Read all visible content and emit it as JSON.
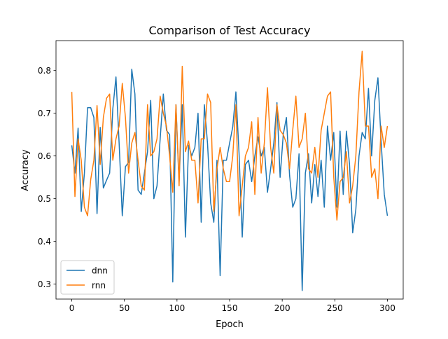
{
  "chart_data": {
    "type": "line",
    "title": "Comparison of Test Accuracy",
    "xlabel": "Epoch",
    "ylabel": "Accuracy",
    "xlim": [
      -15,
      315
    ],
    "ylim": [
      0.265,
      0.87
    ],
    "xticks": [
      0,
      50,
      100,
      150,
      200,
      250,
      300
    ],
    "yticks": [
      0.3,
      0.4,
      0.5,
      0.6,
      0.7,
      0.8
    ],
    "grid": false,
    "legend": "lower-left",
    "x": [
      0,
      3,
      6,
      9,
      12,
      15,
      18,
      21,
      24,
      27,
      30,
      33,
      36,
      39,
      42,
      45,
      48,
      51,
      54,
      57,
      60,
      63,
      66,
      69,
      72,
      75,
      78,
      81,
      84,
      87,
      90,
      93,
      96,
      99,
      102,
      105,
      108,
      111,
      114,
      117,
      120,
      123,
      126,
      129,
      132,
      135,
      138,
      141,
      144,
      147,
      150,
      153,
      156,
      159,
      162,
      165,
      168,
      171,
      174,
      177,
      180,
      183,
      186,
      189,
      192,
      195,
      198,
      201,
      204,
      207,
      210,
      213,
      216,
      219,
      222,
      225,
      228,
      231,
      234,
      237,
      240,
      243,
      246,
      249,
      252,
      255,
      258,
      261,
      264,
      267,
      270,
      273,
      276,
      279,
      282,
      285,
      288,
      291,
      294,
      297,
      300
    ],
    "series": [
      {
        "name": "dnn",
        "color": "#1f77b4",
        "values": [
          0.625,
          0.56,
          0.665,
          0.47,
          0.56,
          0.713,
          0.713,
          0.69,
          0.465,
          0.667,
          0.525,
          0.543,
          0.56,
          0.71,
          0.785,
          0.63,
          0.46,
          0.575,
          0.585,
          0.803,
          0.745,
          0.52,
          0.51,
          0.56,
          0.61,
          0.73,
          0.5,
          0.53,
          0.64,
          0.745,
          0.66,
          0.65,
          0.305,
          0.72,
          0.54,
          0.72,
          0.41,
          0.625,
          0.6,
          0.62,
          0.7,
          0.445,
          0.72,
          0.63,
          0.49,
          0.445,
          0.59,
          0.32,
          0.59,
          0.59,
          0.63,
          0.668,
          0.75,
          0.605,
          0.41,
          0.58,
          0.59,
          0.54,
          0.6,
          0.645,
          0.6,
          0.62,
          0.515,
          0.57,
          0.63,
          0.725,
          0.55,
          0.65,
          0.69,
          0.555,
          0.48,
          0.5,
          0.605,
          0.285,
          0.56,
          0.605,
          0.49,
          0.58,
          0.505,
          0.59,
          0.48,
          0.67,
          0.59,
          0.655,
          0.48,
          0.658,
          0.51,
          0.658,
          0.58,
          0.42,
          0.475,
          0.6,
          0.655,
          0.64,
          0.758,
          0.6,
          0.73,
          0.783,
          0.635,
          0.51,
          0.46
        ]
      },
      {
        "name": "rnn",
        "color": "#ff7f0e",
        "values": [
          0.75,
          0.505,
          0.64,
          0.59,
          0.48,
          0.46,
          0.545,
          0.59,
          0.718,
          0.58,
          0.69,
          0.735,
          0.745,
          0.59,
          0.64,
          0.67,
          0.77,
          0.69,
          0.56,
          0.63,
          0.655,
          0.59,
          0.53,
          0.52,
          0.72,
          0.6,
          0.61,
          0.64,
          0.74,
          0.7,
          0.67,
          0.6,
          0.515,
          0.72,
          0.53,
          0.81,
          0.61,
          0.635,
          0.59,
          0.59,
          0.49,
          0.64,
          0.64,
          0.745,
          0.725,
          0.47,
          0.57,
          0.62,
          0.57,
          0.54,
          0.54,
          0.6,
          0.72,
          0.46,
          0.53,
          0.6,
          0.62,
          0.68,
          0.51,
          0.69,
          0.56,
          0.63,
          0.76,
          0.62,
          0.56,
          0.72,
          0.66,
          0.65,
          0.63,
          0.57,
          0.66,
          0.74,
          0.62,
          0.64,
          0.7,
          0.57,
          0.56,
          0.62,
          0.55,
          0.66,
          0.7,
          0.74,
          0.75,
          0.55,
          0.45,
          0.54,
          0.55,
          0.61,
          0.49,
          0.53,
          0.6,
          0.75,
          0.845,
          0.67,
          0.67,
          0.55,
          0.57,
          0.5,
          0.67,
          0.62,
          0.67
        ]
      }
    ]
  }
}
